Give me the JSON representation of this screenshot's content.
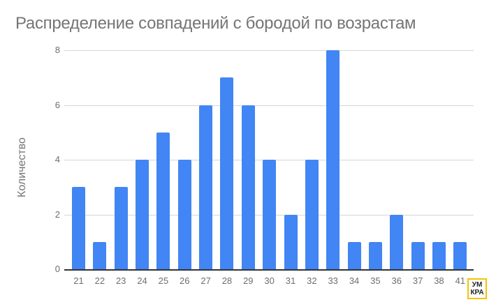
{
  "chart_data": {
    "type": "bar",
    "title": "Распределение совпадений с бородой по возрастам",
    "xlabel": "",
    "ylabel": "Количество",
    "categories": [
      "21",
      "22",
      "23",
      "24",
      "25",
      "26",
      "27",
      "28",
      "29",
      "30",
      "31",
      "32",
      "33",
      "34",
      "35",
      "36",
      "37",
      "38",
      "41"
    ],
    "values": [
      3,
      1,
      3,
      4,
      5,
      4,
      6,
      7,
      6,
      4,
      2,
      4,
      8,
      1,
      1,
      2,
      1,
      1,
      1
    ],
    "ylim": [
      0,
      8
    ],
    "yticks": [
      0,
      2,
      4,
      6,
      8
    ],
    "grid": true,
    "legend": "none",
    "bar_color": "#4285f4"
  },
  "logo": {
    "line1": "УМ",
    "line2": "КРА",
    "border_color": "#f5c400"
  }
}
